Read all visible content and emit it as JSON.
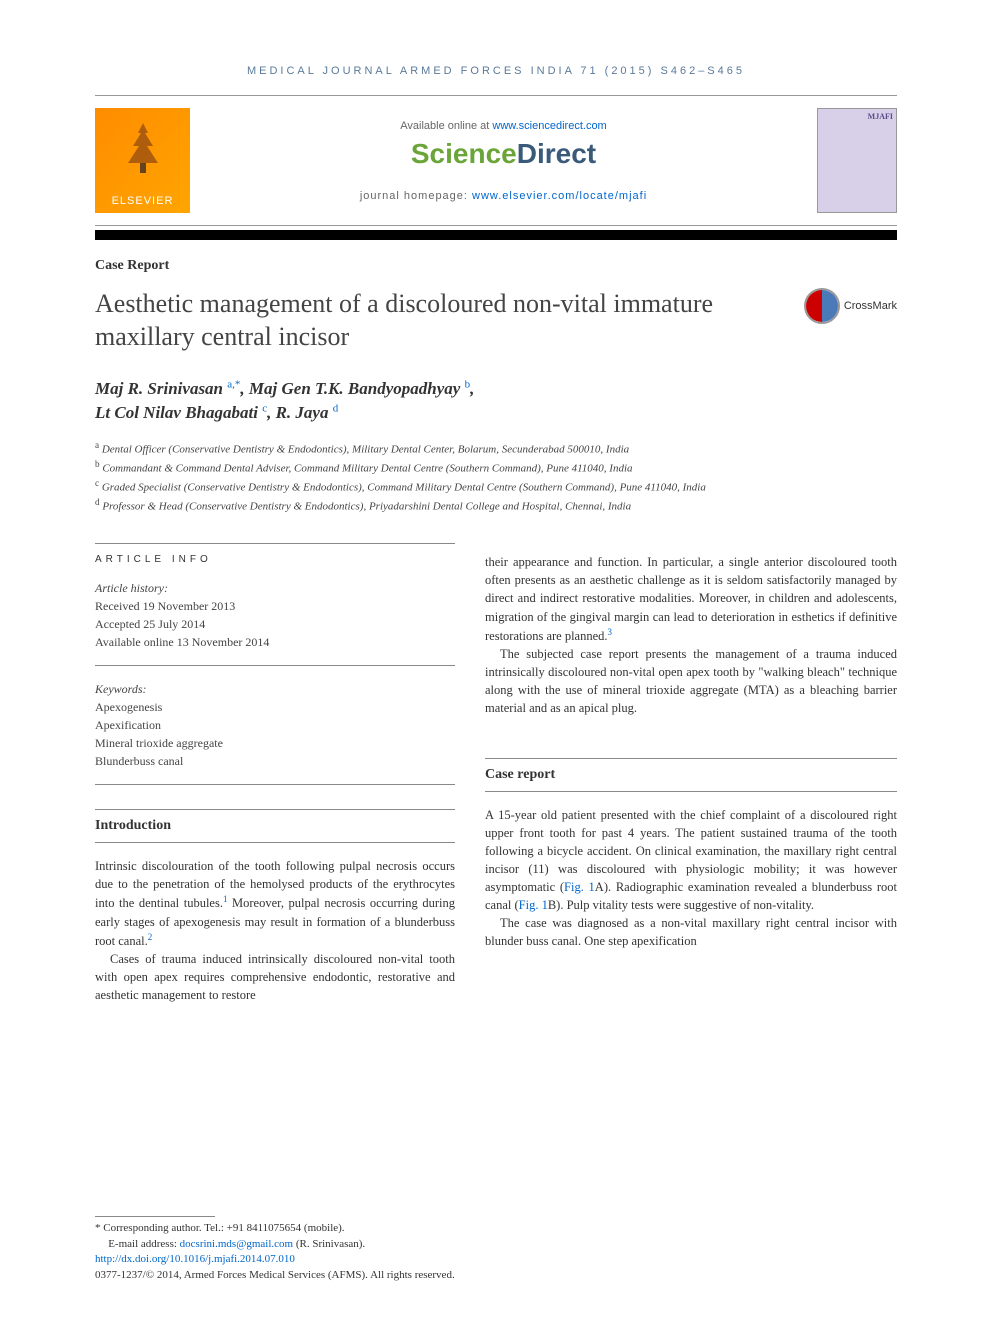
{
  "running_head": "MEDICAL JOURNAL ARMED FORCES INDIA 71 (2015) S462–S465",
  "header": {
    "available_prefix": "Available online at ",
    "available_link": "www.sciencedirect.com",
    "logo_science": "Science",
    "logo_direct": "Direct",
    "homepage_prefix": "journal homepage: ",
    "homepage_link": "www.elsevier.com/locate/mjafi",
    "elsevier": "ELSEVIER",
    "journal_cover_title": "MJAFI"
  },
  "crossmark": "CrossMark",
  "article_type": "Case Report",
  "title": "Aesthetic management of a discoloured non-vital immature maxillary central incisor",
  "authors_html": "Maj R. Srinivasan <sup class='sup-link'>a,*</sup>, Maj Gen T.K. Bandyopadhyay <sup class='sup-link'>b</sup>,<br>Lt Col Nilav Bhagabati <sup class='sup-link'>c</sup>, R. Jaya <sup class='sup-link'>d</sup>",
  "affiliations": [
    "a Dental Officer (Conservative Dentistry & Endodontics), Military Dental Center, Bolarum, Secunderabad 500010, India",
    "b Commandant & Command Dental Adviser, Command Military Dental Centre (Southern Command), Pune 411040, India",
    "c Graded Specialist (Conservative Dentistry & Endodontics), Command Military Dental Centre (Southern Command), Pune 411040, India",
    "d Professor & Head (Conservative Dentistry & Endodontics), Priyadarshini Dental College and Hospital, Chennai, India"
  ],
  "article_info": {
    "header": "ARTICLE INFO",
    "history_label": "Article history:",
    "received": "Received 19 November 2013",
    "accepted": "Accepted 25 July 2014",
    "online": "Available online 13 November 2014",
    "keywords_label": "Keywords:",
    "keywords": [
      "Apexogenesis",
      "Apexification",
      "Mineral trioxide aggregate",
      "Blunderbuss canal"
    ]
  },
  "abstract_p1": "their appearance and function. In particular, a single anterior discoloured tooth often presents as an aesthetic challenge as it is seldom satisfactorily managed by direct and indirect restorative modalities. Moreover, in children and adolescents, migration of the gingival margin can lead to deterioration in esthetics if definitive restorations are planned.",
  "abstract_p2": "The subjected case report presents the management of a trauma induced intrinsically discoloured non-vital open apex tooth by \"walking bleach\" technique along with the use of mineral trioxide aggregate (MTA) as a bleaching barrier material and as an apical plug.",
  "sections": {
    "intro_title": "Introduction",
    "intro_p1_a": "Intrinsic discolouration of the tooth following pulpal necrosis occurs due to the penetration of the hemolysed products of the erythrocytes into the dentinal tubules.",
    "intro_p1_b": " Moreover, pulpal necrosis occurring during early stages of apexogenesis may result in formation of a blunderbuss root canal.",
    "intro_p2": "Cases of trauma induced intrinsically discoloured non-vital tooth with open apex requires comprehensive endodontic, restorative and aesthetic management to restore",
    "case_title": "Case report",
    "case_p1_a": "A 15-year old patient presented with the chief complaint of a discoloured right upper front tooth for past 4 years. The patient sustained trauma of the tooth following a bicycle accident. On clinical examination, the maxillary right central incisor (11) was discoloured with physiologic mobility; it was however asymptomatic (",
    "case_p1_b": "A). Radiographic examination revealed a blunderbuss root canal (",
    "case_p1_c": "B). Pulp vitality tests were suggestive of non-vitality.",
    "case_p2": "The case was diagnosed as a non-vital maxillary right central incisor with blunder buss canal. One step apexification",
    "fig1": "Fig. 1"
  },
  "refs": {
    "r1": "1",
    "r2": "2",
    "r3": "3"
  },
  "footer": {
    "corr": "* Corresponding author. Tel.: +91 8411075654 (mobile).",
    "email_label": "E-mail address: ",
    "email": "docsrini.mds@gmail.com",
    "email_suffix": " (R. Srinivasan).",
    "doi": "http://dx.doi.org/10.1016/j.mjafi.2014.07.010",
    "copyright": "0377-1237/© 2014, Armed Forces Medical Services (AFMS). All rights reserved."
  },
  "colors": {
    "link": "#0066cc",
    "elsevier_orange": "#ff8c00",
    "sd_green": "#6ba539",
    "sd_blue": "#3a5a7a"
  }
}
